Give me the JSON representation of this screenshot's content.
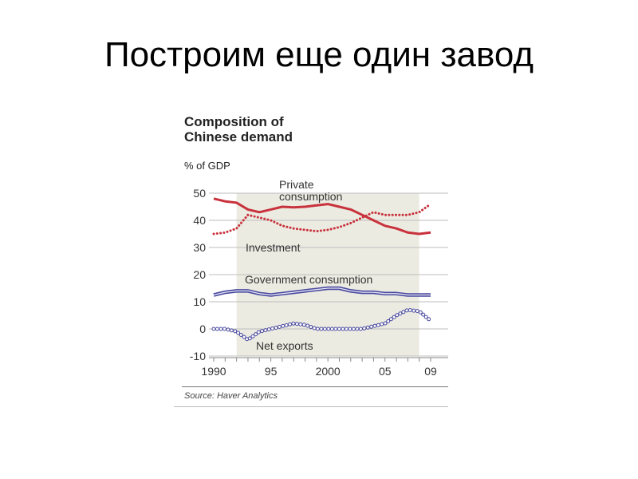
{
  "slide": {
    "title": "Построим еще один завод"
  },
  "chart_data": {
    "type": "line",
    "title_lines": [
      "Composition of",
      "Chinese demand"
    ],
    "ylabel": "% of GDP",
    "source": "Source: Haver Analytics",
    "ylim": [
      -10,
      50
    ],
    "xlim": [
      1990,
      2009
    ],
    "yticks": [
      "50",
      "40",
      "30",
      "20",
      "10",
      "0",
      "-10"
    ],
    "ytick_values": [
      50,
      40,
      30,
      20,
      10,
      0,
      -10
    ],
    "xticks": [
      "1990",
      "95",
      "2000",
      "05",
      "09"
    ],
    "xtick_values": [
      1990,
      1995,
      2000,
      2005,
      2009
    ],
    "shaded_range": [
      1992,
      2008
    ],
    "grid": true,
    "series": [
      {
        "name": "Private consumption",
        "style": "solid",
        "color": "#c8323c",
        "label_lines": [
          "Private",
          "consumption"
        ],
        "points": [
          [
            1990,
            48
          ],
          [
            1991,
            47
          ],
          [
            1992,
            46.5
          ],
          [
            1993,
            44
          ],
          [
            1994,
            43
          ],
          [
            1995,
            44
          ],
          [
            1996,
            45
          ],
          [
            1997,
            44.8
          ],
          [
            1998,
            45
          ],
          [
            1999,
            45.5
          ],
          [
            2000,
            46
          ],
          [
            2001,
            45
          ],
          [
            2002,
            44
          ],
          [
            2003,
            42
          ],
          [
            2004,
            40
          ],
          [
            2005,
            38
          ],
          [
            2006,
            37
          ],
          [
            2007,
            35.5
          ],
          [
            2008,
            35
          ],
          [
            2009,
            35.5
          ]
        ]
      },
      {
        "name": "Investment",
        "style": "dotted",
        "color": "#c8323c",
        "label_lines": [
          "Investment"
        ],
        "points": [
          [
            1990,
            35
          ],
          [
            1991,
            35.5
          ],
          [
            1992,
            37
          ],
          [
            1993,
            42
          ],
          [
            1994,
            41
          ],
          [
            1995,
            40
          ],
          [
            1996,
            38
          ],
          [
            1997,
            37
          ],
          [
            1998,
            36.5
          ],
          [
            1999,
            36
          ],
          [
            2000,
            36.5
          ],
          [
            2001,
            37.5
          ],
          [
            2002,
            39
          ],
          [
            2003,
            41
          ],
          [
            2004,
            43
          ],
          [
            2005,
            42
          ],
          [
            2006,
            42
          ],
          [
            2007,
            42
          ],
          [
            2008,
            43
          ],
          [
            2009,
            46
          ]
        ]
      },
      {
        "name": "Government consumption",
        "style": "double",
        "color": "#4a4aa0",
        "label_lines": [
          "Government consumption"
        ],
        "points": [
          [
            1990,
            12.5
          ],
          [
            1991,
            13.5
          ],
          [
            1992,
            14
          ],
          [
            1993,
            14
          ],
          [
            1994,
            13
          ],
          [
            1995,
            12.5
          ],
          [
            1996,
            13
          ],
          [
            1997,
            13.5
          ],
          [
            1998,
            14
          ],
          [
            1999,
            14.5
          ],
          [
            2000,
            15
          ],
          [
            2001,
            15
          ],
          [
            2002,
            14
          ],
          [
            2003,
            13.5
          ],
          [
            2004,
            13.5
          ],
          [
            2005,
            13
          ],
          [
            2006,
            13
          ],
          [
            2007,
            12.5
          ],
          [
            2008,
            12.5
          ],
          [
            2009,
            12.5
          ]
        ]
      },
      {
        "name": "Net exports",
        "style": "circles",
        "color": "#4a4aa0",
        "label_lines": [
          "Net exports"
        ],
        "points": [
          [
            1990,
            0
          ],
          [
            1991,
            0
          ],
          [
            1992,
            -1
          ],
          [
            1993,
            -4
          ],
          [
            1994,
            -1
          ],
          [
            1995,
            0
          ],
          [
            1996,
            1
          ],
          [
            1997,
            2
          ],
          [
            1998,
            1.5
          ],
          [
            1999,
            0
          ],
          [
            2000,
            0
          ],
          [
            2001,
            0
          ],
          [
            2002,
            0
          ],
          [
            2003,
            0
          ],
          [
            2004,
            1
          ],
          [
            2005,
            2
          ],
          [
            2006,
            5
          ],
          [
            2007,
            7
          ],
          [
            2008,
            6.5
          ],
          [
            2009,
            3
          ]
        ]
      }
    ]
  }
}
